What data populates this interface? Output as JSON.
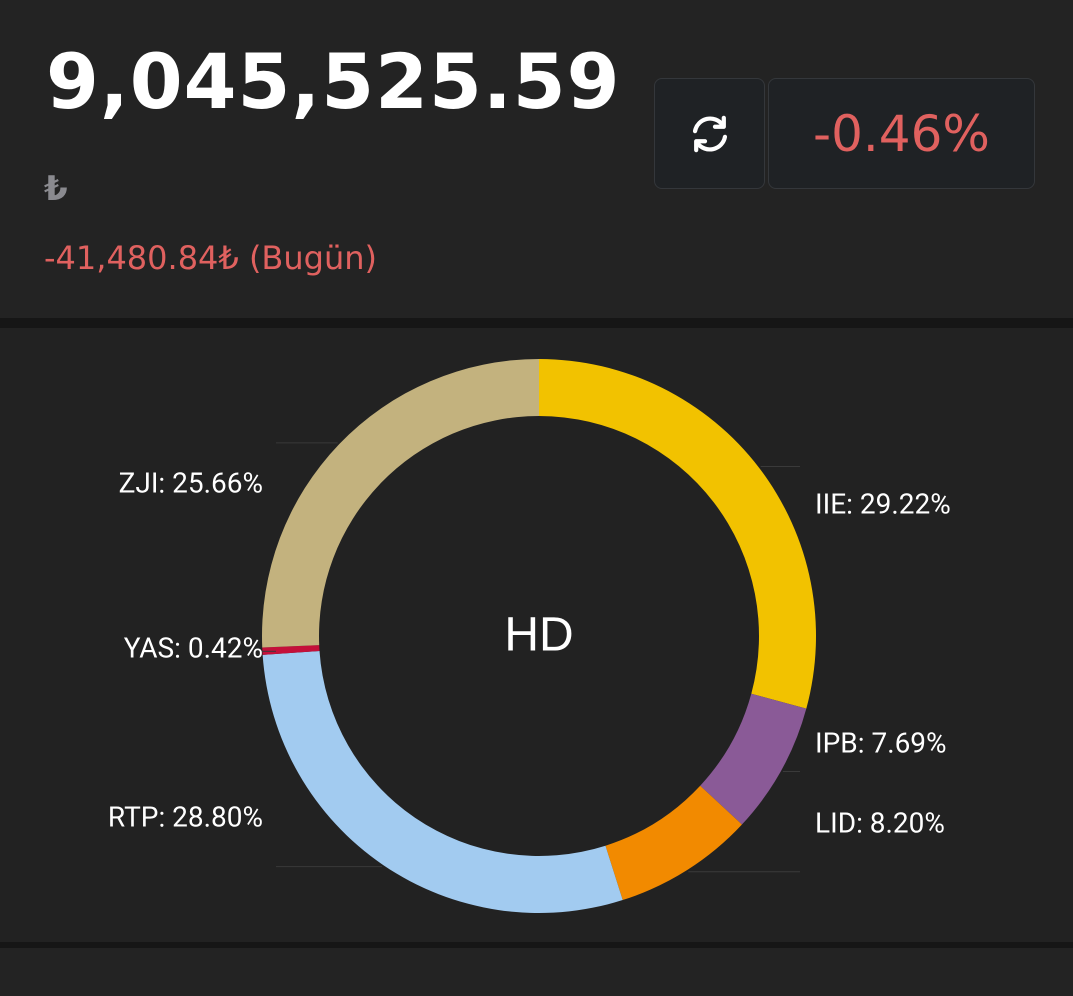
{
  "portfolio": {
    "total_value": "9,045,525.59",
    "currency_symbol": "₺",
    "daily_change": "-41,480.84₺ (Bugün)",
    "change_percent": "-0.46%"
  },
  "icons": {
    "refresh": "refresh-icon"
  },
  "colors": {
    "negative": "#e0615f",
    "background": "#222222"
  },
  "chart_data": {
    "type": "pie",
    "variant": "donut",
    "center_label": "HD",
    "slices": [
      {
        "name": "IIE",
        "value": 29.22,
        "label": "IIE: 29.22%",
        "color": "#f2c200"
      },
      {
        "name": "IPB",
        "value": 7.69,
        "label": "IPB: 7.69%",
        "color": "#8a5a97"
      },
      {
        "name": "LID",
        "value": 8.2,
        "label": "LID: 8.20%",
        "color": "#f28a00"
      },
      {
        "name": "RTP",
        "value": 28.8,
        "label": "RTP: 28.80%",
        "color": "#a2cbf0"
      },
      {
        "name": "YAS",
        "value": 0.42,
        "label": "YAS: 0.42%",
        "color": "#c4103a"
      },
      {
        "name": "ZJI",
        "value": 25.66,
        "label": "ZJI: 25.66%",
        "color": "#c3b27e"
      }
    ]
  }
}
